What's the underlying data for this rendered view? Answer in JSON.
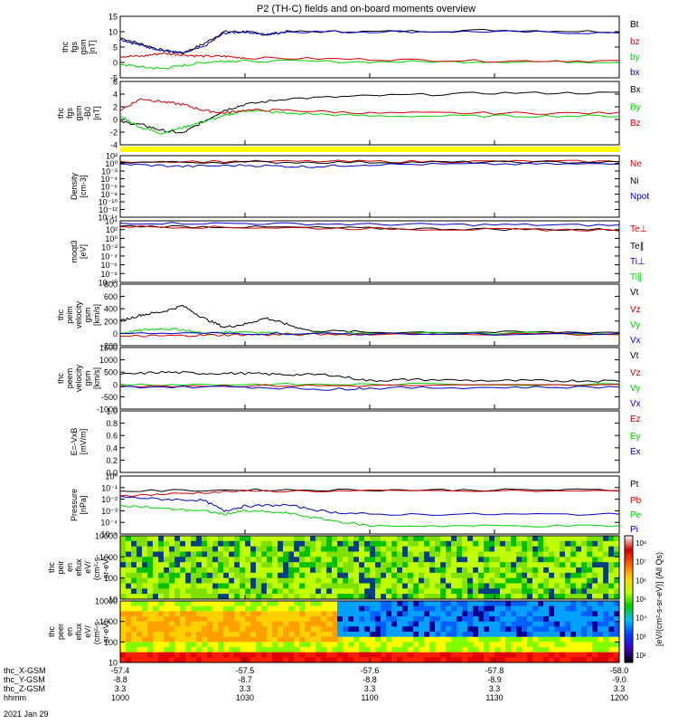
{
  "title": "P2 (TH-C) fields and on-board moments overview",
  "colors": {
    "black": "#000000",
    "red": "#d00000",
    "green": "#00d000",
    "blue": "#0000c8",
    "yellow": "#ffff00"
  },
  "bottom_axis": {
    "rows": [
      {
        "label": "thc_X-GSM",
        "values": [
          "-57.4",
          "-57.5",
          "-57.6",
          "-57.8",
          "-58.0"
        ]
      },
      {
        "label": "thc_Y-GSM",
        "values": [
          "-8.8",
          "-8.7",
          "-8.8",
          "-8.9",
          "-9.0"
        ]
      },
      {
        "label": "thc_Z-GSM",
        "values": [
          "3.3",
          "3.3",
          "3.3",
          "3.3",
          "3.3"
        ]
      },
      {
        "label": "hhmm",
        "values": [
          "1000",
          "1030",
          "1100",
          "1130",
          "1200"
        ]
      }
    ],
    "date": "2021 Jan 29"
  },
  "chart_data": [
    {
      "type": "line",
      "ylabel_lines": [
        "thc",
        "fgs",
        "gsm",
        "[nT]"
      ],
      "yticks": [
        "15",
        "10",
        "5",
        "0",
        "-5"
      ],
      "ylim": [
        -5,
        15
      ],
      "legend": [
        {
          "label": "Bt",
          "color": "black"
        },
        {
          "label": "bz",
          "color": "red"
        },
        {
          "label": "by",
          "color": "green"
        },
        {
          "label": "bx",
          "color": "blue"
        }
      ],
      "series": [
        {
          "name": "Bt",
          "color": "black",
          "x": [
            1000,
            1005,
            1010,
            1015,
            1020,
            1025,
            1030,
            1035,
            1040,
            1100,
            1130,
            1200
          ],
          "y": [
            8,
            6,
            4,
            3,
            6,
            10,
            10,
            9,
            10,
            10,
            10.5,
            10
          ]
        },
        {
          "name": "bx",
          "color": "blue",
          "x": [
            1000,
            1005,
            1010,
            1015,
            1020,
            1025,
            1030,
            1035,
            1040,
            1100,
            1130,
            1200
          ],
          "y": [
            7.5,
            5.5,
            4,
            3,
            5,
            9.5,
            10,
            9,
            10,
            10,
            10,
            9.5
          ]
        },
        {
          "name": "by",
          "color": "green",
          "x": [
            1000,
            1005,
            1010,
            1015,
            1020,
            1025,
            1030,
            1100,
            1130,
            1200
          ],
          "y": [
            -0.5,
            -1.5,
            -2,
            -1,
            0,
            0.5,
            0.5,
            0.2,
            0.3,
            0.2
          ]
        },
        {
          "name": "bz",
          "color": "red",
          "x": [
            1000,
            1005,
            1010,
            1015,
            1020,
            1025,
            1030,
            1100,
            1130,
            1200
          ],
          "y": [
            2,
            2,
            3,
            2.5,
            2,
            2,
            1.5,
            1,
            0.5,
            0.5
          ]
        }
      ]
    },
    {
      "type": "line",
      "ylabel_lines": [
        "thc",
        "fgs",
        "gsm",
        "-B0",
        "[nT]"
      ],
      "yticks": [
        "6",
        "4",
        "2",
        "0",
        "-2",
        "-4"
      ],
      "ylim": [
        -5,
        6
      ],
      "legend": [
        {
          "label": "Bx",
          "color": "black"
        },
        {
          "label": "By",
          "color": "green"
        },
        {
          "label": "Bz",
          "color": "red"
        }
      ],
      "series": [
        {
          "name": "Bx",
          "color": "black",
          "x": [
            1000,
            1005,
            1010,
            1015,
            1020,
            1025,
            1030,
            1040,
            1100,
            1130,
            1200
          ],
          "y": [
            -1,
            -1.5,
            -2.5,
            -3,
            -1,
            1,
            2,
            3,
            3.5,
            4,
            4
          ]
        },
        {
          "name": "By",
          "color": "green",
          "x": [
            1000,
            1005,
            1010,
            1015,
            1020,
            1025,
            1030,
            1040,
            1100,
            1130,
            1200
          ],
          "y": [
            0,
            -2,
            -3,
            -2,
            -1,
            0,
            1,
            0.5,
            0,
            0,
            0
          ]
        },
        {
          "name": "Bz",
          "color": "red",
          "x": [
            1000,
            1005,
            1010,
            1015,
            1020,
            1025,
            1030,
            1040,
            1100,
            1130,
            1200
          ],
          "y": [
            1,
            3,
            2.5,
            2,
            1,
            0.5,
            1,
            1,
            0.5,
            0.5,
            0.5
          ]
        }
      ]
    },
    {
      "type": "line",
      "ylabel_lines": [
        "Density",
        "[cm-3]"
      ],
      "yticks": [
        "10²",
        "10⁰",
        "10⁻²",
        "10⁻⁴",
        "10⁻⁶",
        "10⁻⁸",
        "10⁻¹⁰",
        "10⁻¹²",
        "10⁻¹⁴"
      ],
      "ylim": [
        -14,
        2
      ],
      "log": true,
      "legend": [
        {
          "label": "Ne",
          "color": "red"
        },
        {
          "label": "Ni",
          "color": "black"
        },
        {
          "label": "Npot",
          "color": "blue"
        }
      ],
      "series": [
        {
          "name": "Ne",
          "color": "red",
          "x": [
            1000,
            1030,
            1100,
            1130,
            1200
          ],
          "y": [
            0.5,
            0.5,
            0.5,
            0.5,
            0.5
          ]
        },
        {
          "name": "Ni",
          "color": "black",
          "x": [
            1000,
            1030,
            1100,
            1130,
            1200
          ],
          "y": [
            0.3,
            0.3,
            0.3,
            0.3,
            0.3
          ]
        },
        {
          "name": "Npot",
          "color": "blue",
          "x": [
            1000,
            1015,
            1030,
            1045,
            1100,
            1130,
            1200
          ],
          "y": [
            -0.2,
            -0.8,
            -0.5,
            -0.9,
            -0.3,
            -0.2,
            -0.2
          ]
        }
      ]
    },
    {
      "type": "line",
      "ylabel_lines": [
        "moqt3",
        "[eV]"
      ],
      "yticks": [
        "10⁴",
        "10²",
        "10⁰",
        "10⁻²",
        "10⁻⁴",
        "10⁻⁶",
        "10⁻⁸",
        "10⁻¹⁰"
      ],
      "ylim": [
        -10,
        4
      ],
      "log": true,
      "legend": [
        {
          "label": "Te⊥",
          "color": "red"
        },
        {
          "label": "Te∥",
          "color": "black"
        },
        {
          "label": "Ti⊥",
          "color": "blue"
        },
        {
          "label": "Ti∥",
          "color": "green"
        }
      ],
      "series": [
        {
          "name": "Ti⊥",
          "color": "blue",
          "x": [
            1000,
            1030,
            1100,
            1130,
            1200
          ],
          "y": [
            3.5,
            3.4,
            3.2,
            3.1,
            3.0
          ]
        },
        {
          "name": "Te∥",
          "color": "black",
          "x": [
            1000,
            1030,
            1100,
            1130,
            1200
          ],
          "y": [
            2.8,
            2.6,
            2.3,
            2.1,
            2.0
          ]
        },
        {
          "name": "Te⊥",
          "color": "red",
          "x": [
            1000,
            1030,
            1100,
            1130,
            1200
          ],
          "y": [
            2.7,
            2.5,
            2.2,
            2.0,
            1.9
          ]
        }
      ]
    },
    {
      "type": "line",
      "ylabel_lines": [
        "thc",
        "peim",
        "velocity",
        "gsm",
        "[km/s]"
      ],
      "yticks": [
        "800",
        "600",
        "400",
        "200",
        "0",
        "-200"
      ],
      "ylim": [
        -200,
        800
      ],
      "legend": [
        {
          "label": "Vt",
          "color": "black"
        },
        {
          "label": "Vz",
          "color": "red"
        },
        {
          "label": "Vy",
          "color": "green"
        },
        {
          "label": "Vx",
          "color": "blue"
        }
      ],
      "series": [
        {
          "name": "Vt",
          "color": "black",
          "x": [
            1000,
            1005,
            1010,
            1015,
            1020,
            1025,
            1030,
            1035,
            1040,
            1045,
            1100,
            1130,
            1200
          ],
          "y": [
            200,
            300,
            350,
            450,
            250,
            100,
            150,
            250,
            150,
            50,
            20,
            20,
            20
          ]
        },
        {
          "name": "Vy",
          "color": "green",
          "x": [
            1000,
            1005,
            1010,
            1015,
            1020,
            1025,
            1030,
            1040,
            1100,
            1200
          ],
          "y": [
            0,
            50,
            80,
            60,
            0,
            20,
            30,
            0,
            0,
            0
          ]
        },
        {
          "name": "Vz",
          "color": "red",
          "x": [
            1000,
            1010,
            1020,
            1030,
            1040,
            1100,
            1200
          ],
          "y": [
            -50,
            -40,
            -30,
            -20,
            -20,
            -10,
            -10
          ]
        },
        {
          "name": "Vx",
          "color": "blue",
          "x": [
            1000,
            1030,
            1100,
            1200
          ],
          "y": [
            0,
            0,
            -10,
            -10
          ]
        }
      ]
    },
    {
      "type": "line",
      "ylabel_lines": [
        "thc",
        "peem",
        "velocity",
        "gsm",
        "[km/s]"
      ],
      "yticks": [
        "1500",
        "1000",
        "500",
        "0",
        "-500",
        "-1000"
      ],
      "ylim": [
        -1000,
        1500
      ],
      "legend": [
        {
          "label": "Vt",
          "color": "black"
        },
        {
          "label": "Vz",
          "color": "red"
        },
        {
          "label": "Vy",
          "color": "green"
        },
        {
          "label": "Vx",
          "color": "blue"
        }
      ],
      "series": [
        {
          "name": "Vt",
          "color": "black",
          "x": [
            1000,
            1010,
            1020,
            1030,
            1040,
            1050,
            1100,
            1110,
            1130,
            1145,
            1200
          ],
          "y": [
            400,
            500,
            450,
            450,
            400,
            400,
            150,
            200,
            150,
            150,
            150
          ]
        },
        {
          "name": "Vy",
          "color": "green",
          "x": [
            1000,
            1030,
            1100,
            1200
          ],
          "y": [
            0,
            0,
            0,
            0
          ]
        },
        {
          "name": "Vz",
          "color": "red",
          "x": [
            1000,
            1030,
            1100,
            1200
          ],
          "y": [
            -50,
            -50,
            -50,
            -30
          ]
        },
        {
          "name": "Vx",
          "color": "blue",
          "x": [
            1000,
            1030,
            1050,
            1100,
            1130,
            1200
          ],
          "y": [
            -100,
            -100,
            -200,
            -150,
            -120,
            -100
          ]
        }
      ]
    },
    {
      "type": "line",
      "ylabel_lines": [
        "E=-VxB",
        "[mV/m]"
      ],
      "yticks": [
        "1.0",
        "0.8",
        "0.6",
        "0.4",
        "0.2",
        "0.0"
      ],
      "ylim": [
        0,
        1
      ],
      "legend": [
        {
          "label": "Ez",
          "color": "red"
        },
        {
          "label": "Ey",
          "color": "green"
        },
        {
          "label": "Ex",
          "color": "blue"
        }
      ],
      "series": []
    },
    {
      "type": "line",
      "ylabel_lines": [
        "Pressure",
        "[nPa]"
      ],
      "yticks": [
        "10⁰",
        "10⁻¹",
        "10⁻²",
        "10⁻³",
        "10⁻⁴",
        "10⁻⁵"
      ],
      "ylim": [
        -5,
        0
      ],
      "log": true,
      "legend": [
        {
          "label": "Pt",
          "color": "black"
        },
        {
          "label": "Pb",
          "color": "red"
        },
        {
          "label": "Pe",
          "color": "green"
        },
        {
          "label": "Pi",
          "color": "blue"
        }
      ],
      "series": [
        {
          "name": "Pt",
          "color": "black",
          "x": [
            1000,
            1030,
            1100,
            1130,
            1200
          ],
          "y": [
            -1.3,
            -1.2,
            -1.2,
            -1.2,
            -1.2
          ]
        },
        {
          "name": "Pb",
          "color": "red",
          "x": [
            1000,
            1015,
            1030,
            1100,
            1200
          ],
          "y": [
            -1.7,
            -1.5,
            -1.3,
            -1.3,
            -1.3
          ]
        },
        {
          "name": "Pi",
          "color": "blue",
          "x": [
            1000,
            1010,
            1020,
            1025,
            1030,
            1040,
            1050,
            1100,
            1130,
            1200
          ],
          "y": [
            -1.8,
            -2.0,
            -2.1,
            -3.0,
            -2.6,
            -2.5,
            -3.1,
            -3.3,
            -3.3,
            -3.3
          ]
        },
        {
          "name": "Pe",
          "color": "green",
          "x": [
            1000,
            1010,
            1020,
            1025,
            1030,
            1040,
            1050,
            1100,
            1130,
            1200
          ],
          "y": [
            -2.5,
            -2.8,
            -3.0,
            -3.3,
            -3.0,
            -3.2,
            -3.8,
            -4.3,
            -4.3,
            -4.3
          ]
        }
      ]
    },
    {
      "type": "heatmap",
      "ylabel_lines": [
        "thc",
        "peir",
        "en",
        "eflux",
        "eV/",
        "(cm²-s-",
        "sr-eV)"
      ],
      "yticks": [
        "10000",
        "1000",
        "100",
        "10"
      ],
      "ylim_log": [
        1,
        4.5
      ],
      "pattern": [
        {
          "x_range": [
            1000,
            1025
          ],
          "y_range": [
            3.2,
            4.3
          ],
          "level": "high"
        },
        {
          "x_range": [
            1025,
            1045
          ],
          "y_range": [
            3.4,
            4.2
          ],
          "level": "high"
        },
        {
          "x_range": [
            1000,
            1200
          ],
          "y_range": [
            1,
            4.5
          ],
          "level": "mid"
        }
      ]
    },
    {
      "type": "heatmap",
      "ylabel_lines": [
        "thc",
        "peer",
        "en",
        "eflux",
        "eV/",
        "(cm²-s-",
        "sr-eV)"
      ],
      "yticks": [
        "10000",
        "1000",
        "100",
        "10"
      ],
      "ylim_log": [
        1,
        4.5
      ],
      "pattern": [
        {
          "x_range": [
            1000,
            1200
          ],
          "y_range": [
            1,
            1.5
          ],
          "level": "max"
        },
        {
          "x_range": [
            1000,
            1052
          ],
          "y_range": [
            2.3,
            3.8
          ],
          "level": "high"
        },
        {
          "x_range": [
            1052,
            1200
          ],
          "y_range": [
            2.5,
            4.5
          ],
          "level": "low"
        }
      ]
    }
  ],
  "colorbar": {
    "ticks": [
      "10⁸",
      "10⁷",
      "10⁶",
      "10⁵",
      "10⁴",
      "10³",
      "10²"
    ],
    "label": "[eV/(cm²-s-sr-eV)] (All Qs)",
    "stops": [
      "#ffffff",
      "#d00000",
      "#ff6000",
      "#ffd000",
      "#c0ff00",
      "#00d000",
      "#00c0ff",
      "#0040ff",
      "#4000c0",
      "#000000"
    ]
  }
}
